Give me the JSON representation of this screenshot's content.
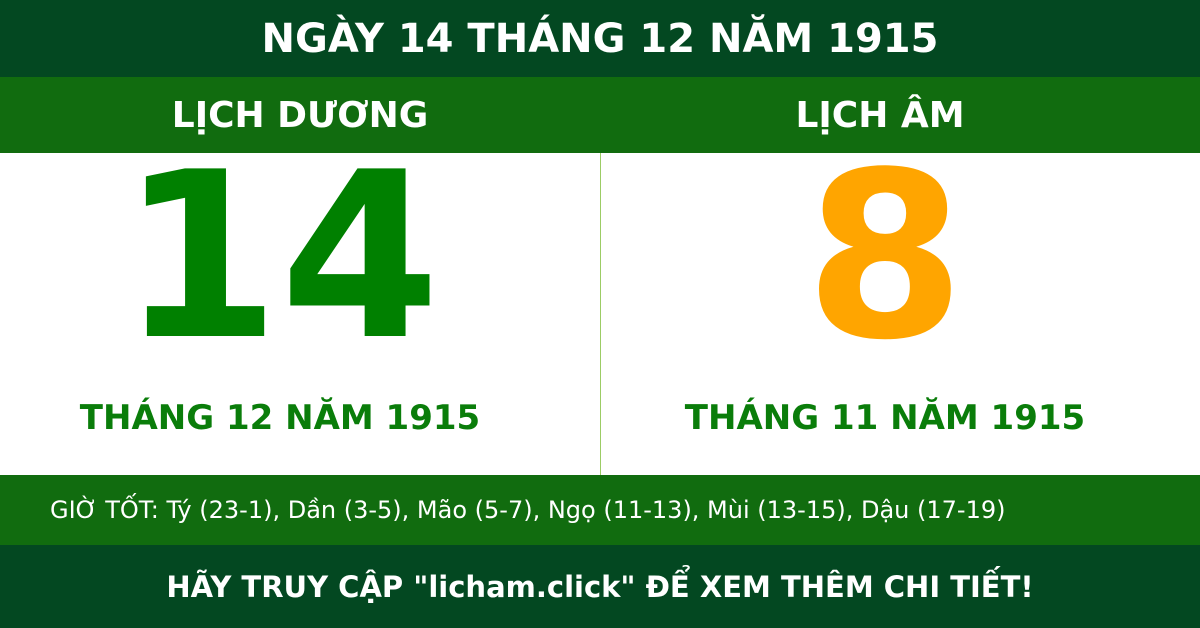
{
  "header": {
    "title": "NGÀY 14 THÁNG 12 NĂM 1915"
  },
  "solar": {
    "label": "LỊCH DƯƠNG",
    "day": "14",
    "month_year": "THÁNG 12 NĂM 1915"
  },
  "lunar": {
    "label": "LỊCH ÂM",
    "day": "8",
    "month_year": "THÁNG 11 NĂM 1915"
  },
  "good_hours": "GIỜ TỐT: Tý (23-1), Dần (3-5), Mão (5-7), Ngọ (11-13), Mùi (13-15), Dậu (17-19)",
  "footer": {
    "cta": "HÃY TRUY CẬP \"licham.click\" ĐỂ XEM THÊM CHI TIẾT!"
  },
  "colors": {
    "dark_green": "#034821",
    "green": "#116c0f",
    "solar_day": "#008000",
    "lunar_day": "#ffa500"
  }
}
